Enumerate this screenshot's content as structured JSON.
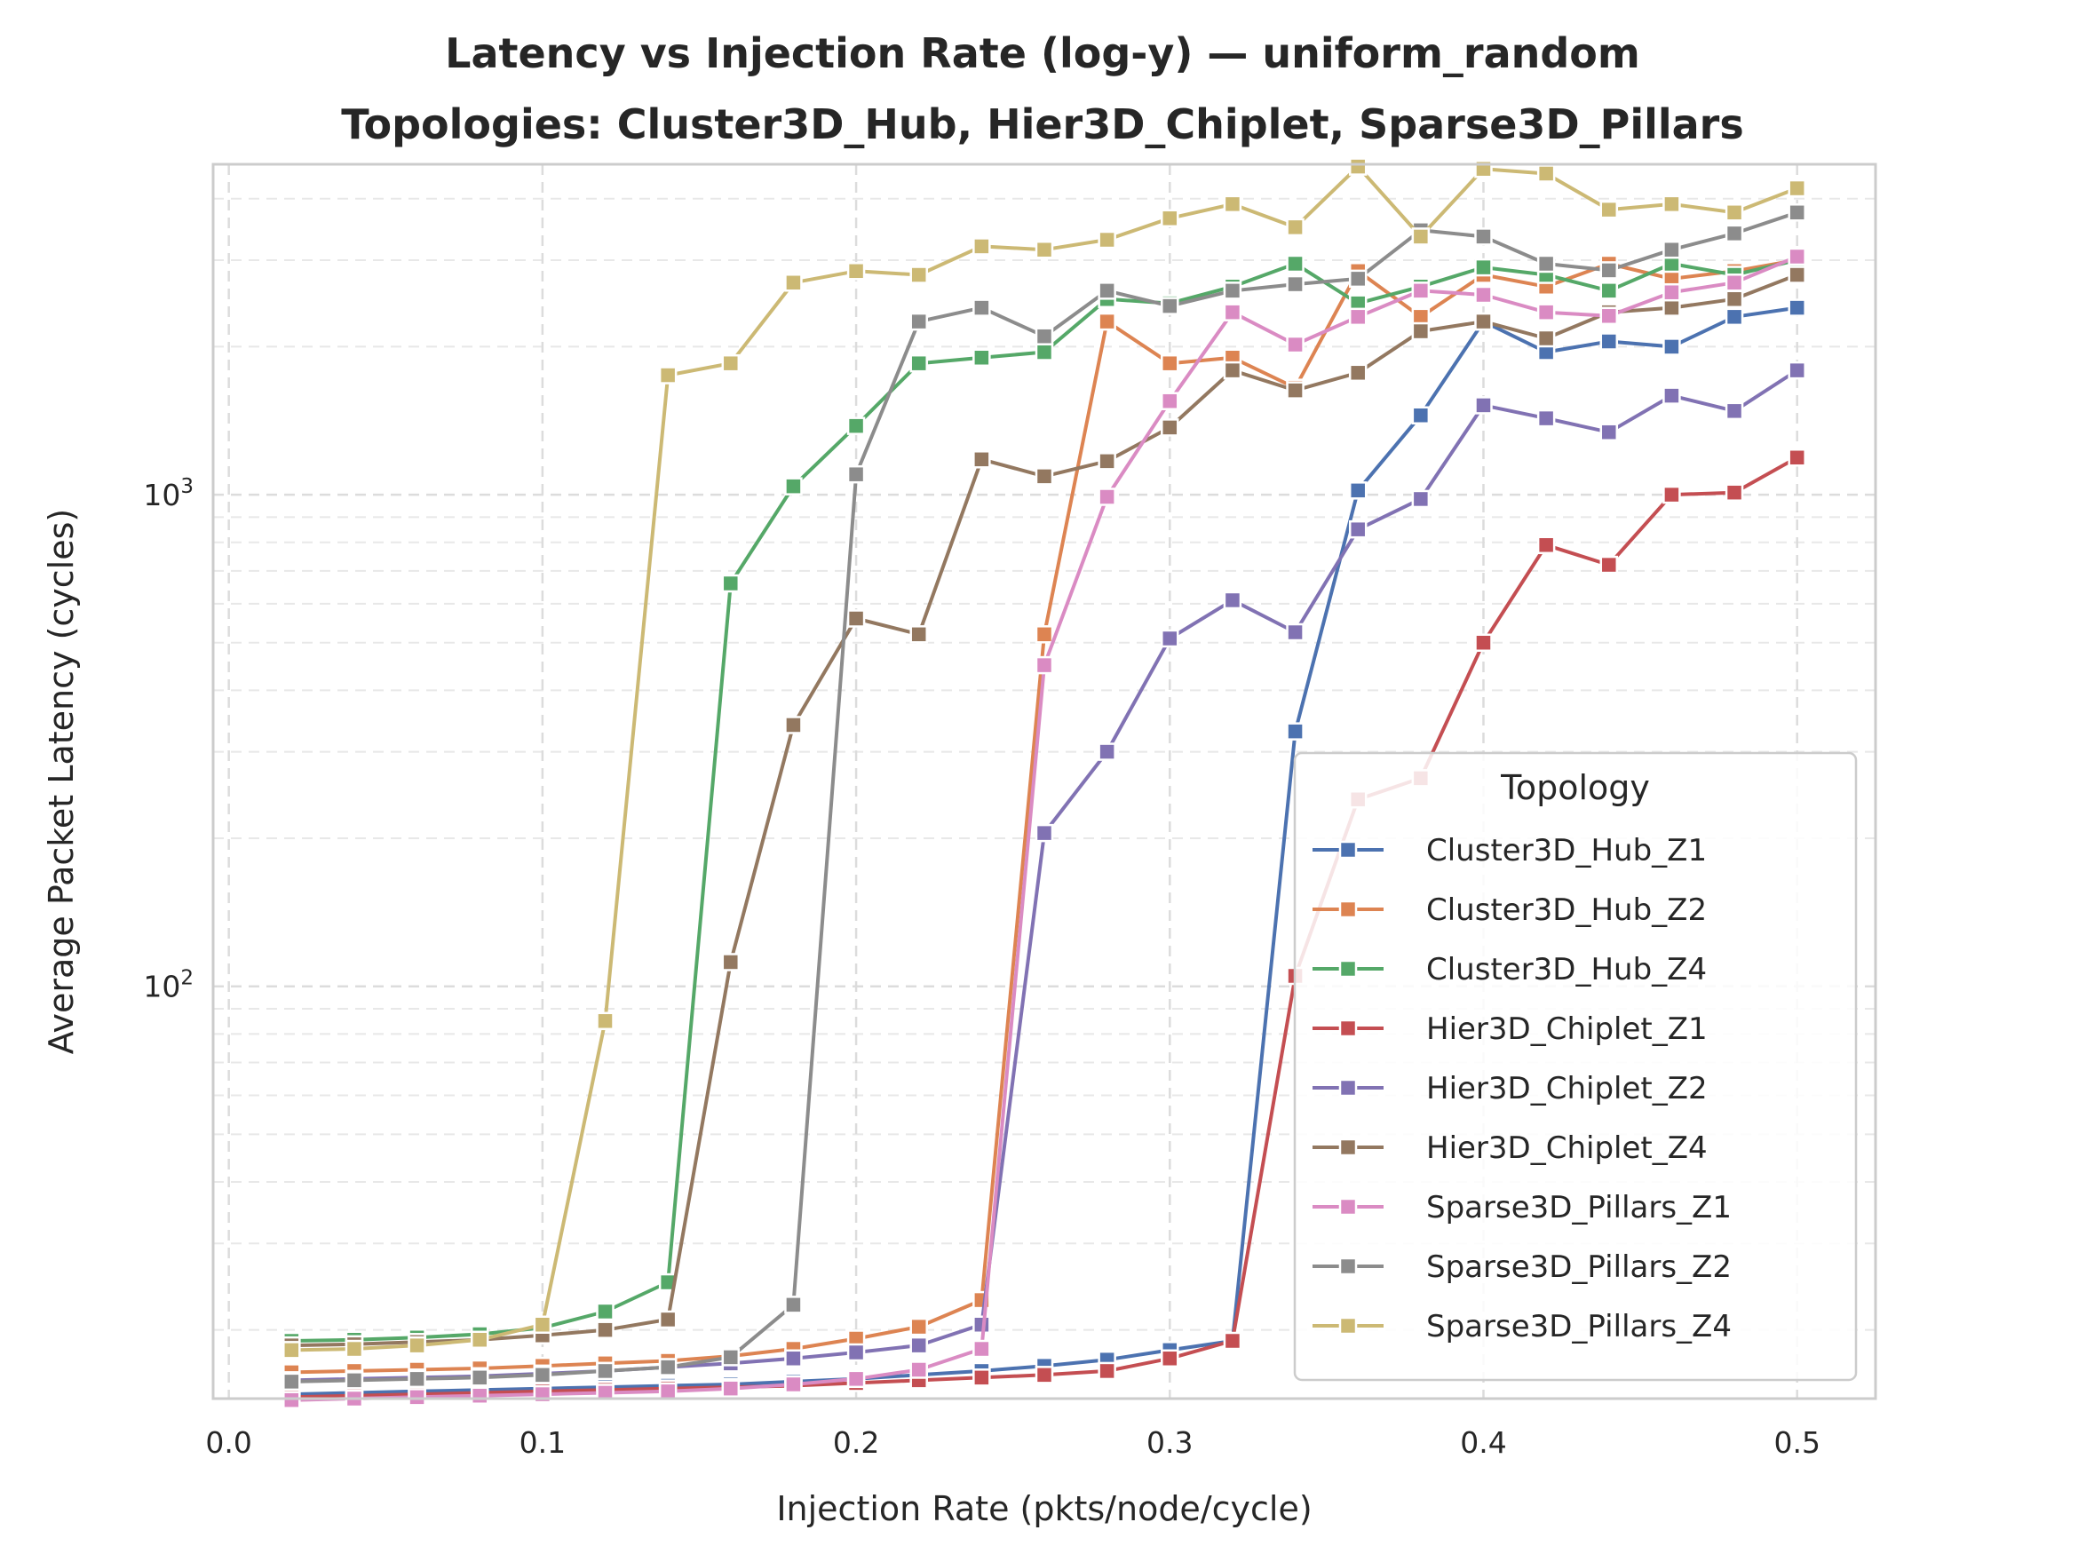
{
  "chart_data": {
    "type": "line",
    "title_line1": "Latency vs Injection Rate (log-y) — uniform_random",
    "title_line2": "Topologies: Cluster3D_Hub, Hier3D_Chiplet, Sparse3D_Pillars",
    "xlabel": "Injection Rate (pkts/node/cycle)",
    "ylabel": "Average Packet Latency (cycles)",
    "xlim": [
      -0.005,
      0.525
    ],
    "ylim": [
      14.5,
      4700
    ],
    "yscale": "log",
    "xticks": [
      {
        "value": 0.0,
        "label": "0.0"
      },
      {
        "value": 0.1,
        "label": "0.1"
      },
      {
        "value": 0.2,
        "label": "0.2"
      },
      {
        "value": 0.3,
        "label": "0.3"
      },
      {
        "value": 0.4,
        "label": "0.4"
      },
      {
        "value": 0.5,
        "label": "0.5"
      }
    ],
    "yticks": [
      {
        "value": 100,
        "base": "10",
        "exp": "2"
      },
      {
        "value": 1000,
        "base": "10",
        "exp": "3"
      }
    ],
    "grid": true,
    "legend": {
      "title": "Topology",
      "placement": "lower-right"
    },
    "x": [
      0.02,
      0.04,
      0.06,
      0.08,
      0.1,
      0.12,
      0.14,
      0.16,
      0.18,
      0.2,
      0.22,
      0.24,
      0.26,
      0.28,
      0.3,
      0.32,
      0.34,
      0.36,
      0.38,
      0.4,
      0.42,
      0.44,
      0.46,
      0.48,
      0.5
    ],
    "series": [
      {
        "name": "Cluster3D_Hub_Z1",
        "color": "#4c72b0",
        "values": [
          14.8,
          14.9,
          15.0,
          15.1,
          15.2,
          15.3,
          15.4,
          15.5,
          15.7,
          15.9,
          16.2,
          16.5,
          16.9,
          17.4,
          18.2,
          19.0,
          330,
          1020,
          1450,
          2250,
          1950,
          2050,
          2000,
          2300,
          2400
        ]
      },
      {
        "name": "Cluster3D_Hub_Z2",
        "color": "#dd8452",
        "values": [
          16.4,
          16.5,
          16.6,
          16.7,
          16.9,
          17.1,
          17.3,
          17.7,
          18.3,
          19.2,
          20.3,
          23.0,
          520,
          2250,
          1850,
          1900,
          1650,
          2850,
          2300,
          2800,
          2650,
          2950,
          2750,
          2850,
          3000
        ]
      },
      {
        "name": "Cluster3D_Hub_Z4",
        "color": "#55a868",
        "values": [
          19.0,
          19.1,
          19.3,
          19.6,
          20.2,
          21.8,
          25.0,
          660,
          1040,
          1380,
          1850,
          1900,
          1950,
          2500,
          2450,
          2650,
          2950,
          2450,
          2650,
          2900,
          2800,
          2600,
          2950,
          2800,
          3000
        ]
      },
      {
        "name": "Hier3D_Chiplet_Z1",
        "color": "#c44e52",
        "values": [
          14.6,
          14.7,
          14.8,
          14.9,
          15.0,
          15.1,
          15.2,
          15.3,
          15.4,
          15.6,
          15.8,
          16.0,
          16.2,
          16.5,
          17.5,
          19.0,
          105,
          240,
          265,
          500,
          790,
          720,
          1000,
          1010,
          1190
        ]
      },
      {
        "name": "Hier3D_Chiplet_Z2",
        "color": "#8172b3",
        "values": [
          15.8,
          15.9,
          16.0,
          16.1,
          16.3,
          16.5,
          16.8,
          17.1,
          17.5,
          18.0,
          18.6,
          20.5,
          205,
          300,
          510,
          610,
          525,
          850,
          980,
          1520,
          1430,
          1340,
          1590,
          1480,
          1790
        ]
      },
      {
        "name": "Hier3D_Chiplet_Z4",
        "color": "#937860",
        "values": [
          18.6,
          18.7,
          18.9,
          19.1,
          19.5,
          20.0,
          21.0,
          112,
          340,
          560,
          520,
          1180,
          1090,
          1170,
          1370,
          1790,
          1630,
          1770,
          2150,
          2250,
          2080,
          2350,
          2400,
          2500,
          2800
        ]
      },
      {
        "name": "Sparse3D_Pillars_Z1",
        "color": "#da8bc3",
        "values": [
          14.4,
          14.5,
          14.6,
          14.7,
          14.8,
          14.9,
          15.0,
          15.2,
          15.5,
          15.9,
          16.6,
          18.3,
          450,
          990,
          1550,
          2350,
          2020,
          2300,
          2600,
          2550,
          2350,
          2310,
          2580,
          2700,
          3050
        ]
      },
      {
        "name": "Sparse3D_Pillars_Z2",
        "color": "#8c8c8c",
        "values": [
          15.7,
          15.8,
          15.9,
          16.0,
          16.2,
          16.5,
          16.8,
          17.6,
          22.5,
          1100,
          2250,
          2400,
          2100,
          2600,
          2420,
          2600,
          2680,
          2750,
          3450,
          3350,
          2950,
          2860,
          3150,
          3400,
          3750
        ]
      },
      {
        "name": "Sparse3D_Pillars_Z4",
        "color": "#ccb974",
        "values": [
          18.2,
          18.3,
          18.6,
          19.1,
          20.5,
          85,
          1750,
          1850,
          2700,
          2850,
          2800,
          3200,
          3150,
          3300,
          3650,
          3900,
          3500,
          4650,
          3350,
          4600,
          4500,
          3800,
          3900,
          3750,
          4200
        ]
      }
    ]
  }
}
